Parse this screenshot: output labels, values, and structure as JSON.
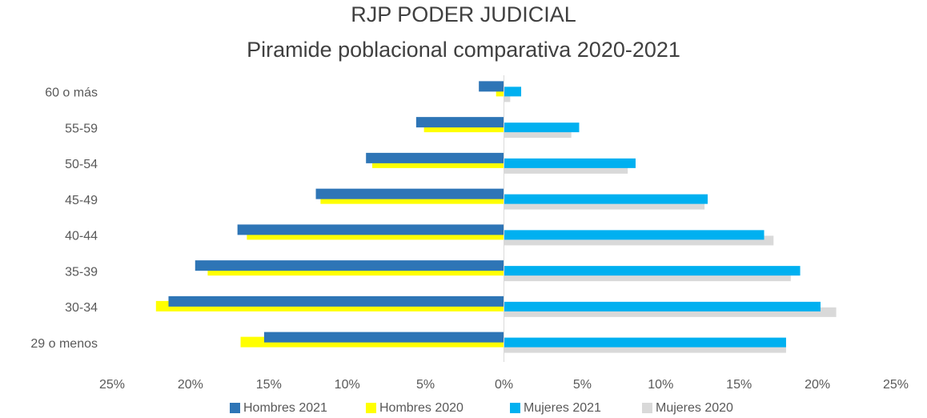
{
  "chart_data": {
    "type": "bar",
    "orientation": "horizontal",
    "title": "RJP PODER JUDICIAL",
    "subtitle": "Piramide poblacional comparativa 2020-2021",
    "categories": [
      "29 o menos",
      "30-34",
      "35-39",
      "40-44",
      "45-49",
      "50-54",
      "55-59",
      "60 o más"
    ],
    "series": [
      {
        "name": "Hombres 2021",
        "color": "#2e75b6",
        "values": [
          -15.3,
          -21.4,
          -19.7,
          -17.0,
          -12.0,
          -8.8,
          -5.6,
          -1.6
        ]
      },
      {
        "name": "Hombres 2020",
        "color": "#ffff00",
        "values": [
          -16.8,
          -22.2,
          -18.9,
          -16.4,
          -11.7,
          -8.4,
          -5.1,
          -0.5
        ]
      },
      {
        "name": "Mujeres 2021",
        "color": "#00b0f0",
        "values": [
          18.0,
          20.2,
          18.9,
          16.6,
          13.0,
          8.4,
          4.8,
          1.1
        ]
      },
      {
        "name": "Mujeres 2020",
        "color": "#d9d9d9",
        "values": [
          18.0,
          21.2,
          18.3,
          17.2,
          12.8,
          7.9,
          4.3,
          0.4
        ]
      }
    ],
    "xlim": [
      -25,
      25
    ],
    "xticks": [
      {
        "value": -25,
        "label": "25%"
      },
      {
        "value": -20,
        "label": "20%"
      },
      {
        "value": -15,
        "label": "15%"
      },
      {
        "value": -10,
        "label": "10%"
      },
      {
        "value": -5,
        "label": "5%"
      },
      {
        "value": 0,
        "label": "0%"
      },
      {
        "value": 5,
        "label": "5%"
      },
      {
        "value": 10,
        "label": "10%"
      },
      {
        "value": 15,
        "label": "15%"
      },
      {
        "value": 20,
        "label": "20%"
      },
      {
        "value": 25,
        "label": "25%"
      }
    ],
    "legend": "bottom"
  }
}
